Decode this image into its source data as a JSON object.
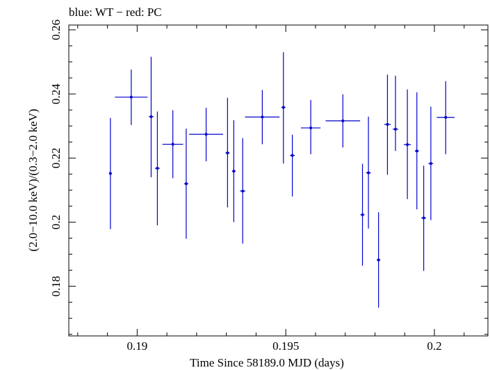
{
  "chart_data": {
    "type": "scatter",
    "title": "blue: WT − red: PC",
    "xlabel": "Time Since 58189.0 MJD (days)",
    "ylabel": "(2.0−10.0 keV)/(0.3−2.0 keV)",
    "xlim": [
      0.1877,
      0.2018
    ],
    "ylim": [
      0.1645,
      0.2615
    ],
    "x_ticks": [
      0.19,
      0.195,
      0.2
    ],
    "x_tick_labels": [
      "0.19",
      "0.195",
      "0.2"
    ],
    "y_ticks": [
      0.18,
      0.2,
      0.22,
      0.24,
      0.26
    ],
    "y_tick_labels": [
      "0.18",
      "0.2",
      "0.22",
      "0.24",
      "0.26"
    ],
    "grid": false,
    "series": [
      {
        "color": "#0000cc",
        "points": [
          {
            "x": 0.1891,
            "y": 0.2152,
            "xerr": 5e-05,
            "ylo": 0.1978,
            "yhi": 0.2325
          },
          {
            "x": 0.1898,
            "y": 0.239,
            "xerr": 0.00055,
            "ylo": 0.2303,
            "yhi": 0.2476
          },
          {
            "x": 0.19047,
            "y": 0.2329,
            "xerr": 8e-05,
            "ylo": 0.214,
            "yhi": 0.2516
          },
          {
            "x": 0.19068,
            "y": 0.2168,
            "xerr": 8e-05,
            "ylo": 0.199,
            "yhi": 0.2345
          },
          {
            "x": 0.1912,
            "y": 0.2243,
            "xerr": 0.00035,
            "ylo": 0.2137,
            "yhi": 0.2349
          },
          {
            "x": 0.19165,
            "y": 0.212,
            "xerr": 7e-05,
            "ylo": 0.1948,
            "yhi": 0.2292
          },
          {
            "x": 0.19232,
            "y": 0.2274,
            "xerr": 0.00057,
            "ylo": 0.219,
            "yhi": 0.2357
          },
          {
            "x": 0.19304,
            "y": 0.2216,
            "xerr": 7e-05,
            "ylo": 0.2046,
            "yhi": 0.2388
          },
          {
            "x": 0.19325,
            "y": 0.2159,
            "xerr": 6e-05,
            "ylo": 0.2,
            "yhi": 0.2318
          },
          {
            "x": 0.19355,
            "y": 0.2097,
            "xerr": 9e-05,
            "ylo": 0.1933,
            "yhi": 0.2262
          },
          {
            "x": 0.19421,
            "y": 0.2328,
            "xerr": 0.00058,
            "ylo": 0.2243,
            "yhi": 0.2412
          },
          {
            "x": 0.19492,
            "y": 0.2358,
            "xerr": 7e-05,
            "ylo": 0.2183,
            "yhi": 0.253
          },
          {
            "x": 0.19522,
            "y": 0.2208,
            "xerr": 8e-05,
            "ylo": 0.208,
            "yhi": 0.2273
          },
          {
            "x": 0.19584,
            "y": 0.2294,
            "xerr": 0.00033,
            "ylo": 0.2212,
            "yhi": 0.2381
          },
          {
            "x": 0.19692,
            "y": 0.2316,
            "xerr": 0.00058,
            "ylo": 0.2233,
            "yhi": 0.2399
          },
          {
            "x": 0.19758,
            "y": 0.2023,
            "xerr": 7e-05,
            "ylo": 0.1864,
            "yhi": 0.2182
          },
          {
            "x": 0.19778,
            "y": 0.2154,
            "xerr": 8e-05,
            "ylo": 0.198,
            "yhi": 0.2329
          },
          {
            "x": 0.19812,
            "y": 0.1882,
            "xerr": 6e-05,
            "ylo": 0.1733,
            "yhi": 0.2031
          },
          {
            "x": 0.19842,
            "y": 0.2305,
            "xerr": 0.00011,
            "ylo": 0.2148,
            "yhi": 0.246
          },
          {
            "x": 0.19869,
            "y": 0.229,
            "xerr": 9e-05,
            "ylo": 0.2222,
            "yhi": 0.2457
          },
          {
            "x": 0.19909,
            "y": 0.2242,
            "xerr": 0.00012,
            "ylo": 0.2072,
            "yhi": 0.2414
          },
          {
            "x": 0.19941,
            "y": 0.2222,
            "xerr": 7e-05,
            "ylo": 0.204,
            "yhi": 0.2405
          },
          {
            "x": 0.19964,
            "y": 0.2013,
            "xerr": 8e-05,
            "ylo": 0.1848,
            "yhi": 0.2176
          },
          {
            "x": 0.19988,
            "y": 0.2183,
            "xerr": 8e-05,
            "ylo": 0.2006,
            "yhi": 0.236
          },
          {
            "x": 0.20038,
            "y": 0.2327,
            "xerr": 0.0003,
            "ylo": 0.2212,
            "yhi": 0.244
          }
        ]
      }
    ]
  }
}
